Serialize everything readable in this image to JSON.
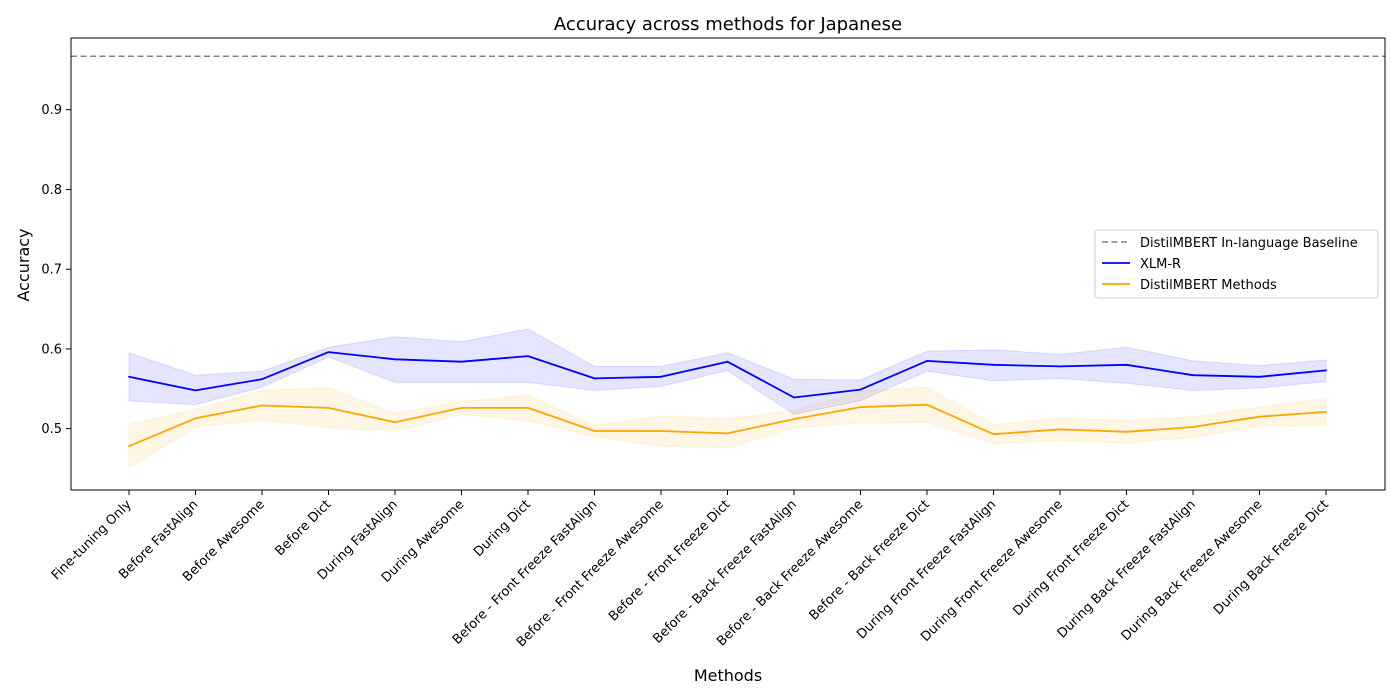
{
  "chart_data": {
    "type": "line",
    "title": "Accuracy across methods for Japanese",
    "xlabel": "Methods",
    "ylabel": "Accuracy",
    "ylim": [
      0.423,
      0.99
    ],
    "yticks": [
      0.5,
      0.6,
      0.7,
      0.8,
      0.9
    ],
    "grid": false,
    "legend_position": "center-right",
    "categories": [
      "Fine-tuning Only",
      "Before FastAlign",
      "Before Awesome",
      "Before Dict",
      "During FastAlign",
      "During Awesome",
      "During Dict",
      "Before - Front Freeze FastAlign",
      "Before - Front Freeze Awesome",
      "Before - Front Freeze Dict",
      "Before - Back Freeze FastAlign",
      "Before - Back Freeze Awesome",
      "Before - Back Freeze Dict",
      "During Front Freeze FastAlign",
      "During Front Freeze Awesome",
      "During Front Freeze Dict",
      "During Back Freeze FastAlign",
      "During Back Freeze Awesome",
      "During Back Freeze Dict"
    ],
    "baseline": {
      "name": "DistilMBERT In-language Baseline",
      "value": 0.967,
      "color": "#808080",
      "style": "dashed"
    },
    "series": [
      {
        "name": "XLM-R",
        "color": "#0000ff",
        "values": [
          0.565,
          0.548,
          0.562,
          0.596,
          0.587,
          0.584,
          0.591,
          0.563,
          0.565,
          0.584,
          0.539,
          0.549,
          0.585,
          0.58,
          0.578,
          0.58,
          0.567,
          0.565,
          0.573
        ],
        "lower": [
          0.535,
          0.53,
          0.552,
          0.59,
          0.558,
          0.558,
          0.558,
          0.548,
          0.553,
          0.573,
          0.518,
          0.535,
          0.572,
          0.56,
          0.563,
          0.557,
          0.548,
          0.551,
          0.559
        ],
        "upper": [
          0.595,
          0.567,
          0.572,
          0.602,
          0.615,
          0.609,
          0.625,
          0.578,
          0.578,
          0.595,
          0.562,
          0.561,
          0.597,
          0.599,
          0.593,
          0.602,
          0.585,
          0.579,
          0.586
        ]
      },
      {
        "name": "DistilMBERT Methods",
        "color": "#ffa500",
        "values": [
          0.478,
          0.513,
          0.529,
          0.526,
          0.508,
          0.526,
          0.526,
          0.497,
          0.497,
          0.494,
          0.512,
          0.527,
          0.53,
          0.493,
          0.499,
          0.496,
          0.502,
          0.515,
          0.521
        ],
        "lower": [
          0.451,
          0.502,
          0.511,
          0.501,
          0.497,
          0.518,
          0.51,
          0.49,
          0.478,
          0.476,
          0.501,
          0.507,
          0.508,
          0.481,
          0.485,
          0.482,
          0.489,
          0.503,
          0.504
        ],
        "upper": [
          0.505,
          0.524,
          0.548,
          0.551,
          0.519,
          0.534,
          0.542,
          0.504,
          0.516,
          0.512,
          0.523,
          0.547,
          0.552,
          0.505,
          0.513,
          0.51,
          0.515,
          0.527,
          0.538
        ]
      }
    ]
  }
}
